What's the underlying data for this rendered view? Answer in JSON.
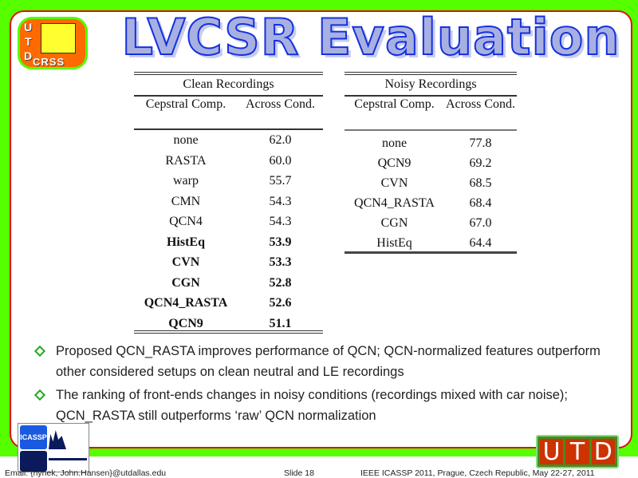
{
  "header": {
    "title": "LVCSR Evaluation",
    "logo_letters": [
      "U",
      "T",
      "D"
    ],
    "logo_text": "CRSS"
  },
  "clean_table": {
    "caption": "Clean Recordings",
    "col1": "Cepstral Comp.",
    "col2": "Across Cond.",
    "rows": [
      {
        "name": "none",
        "value": "62.0",
        "bold": false
      },
      {
        "name": "RASTA",
        "value": "60.0",
        "bold": false
      },
      {
        "name": "warp",
        "value": "55.7",
        "bold": false
      },
      {
        "name": "CMN",
        "value": "54.3",
        "bold": false
      },
      {
        "name": "QCN4",
        "value": "54.3",
        "bold": false
      },
      {
        "name": "HistEq",
        "value": "53.9",
        "bold": true
      },
      {
        "name": "CVN",
        "value": "53.3",
        "bold": true
      },
      {
        "name": "CGN",
        "value": "52.8",
        "bold": true
      },
      {
        "name": "QCN4_RASTA",
        "value": "52.6",
        "bold": true
      },
      {
        "name": "QCN9",
        "value": "51.1",
        "bold": true
      }
    ]
  },
  "noisy_table": {
    "caption": "Noisy Recordings",
    "col1": "Cepstral Comp.",
    "col2": "Across Cond.",
    "rows": [
      {
        "name": "none",
        "value": "77.8"
      },
      {
        "name": "QCN9",
        "value": "69.2"
      },
      {
        "name": "CVN",
        "value": "68.5"
      },
      {
        "name": "QCN4_RASTA",
        "value": "68.4"
      },
      {
        "name": "CGN",
        "value": "67.0"
      },
      {
        "name": "HistEq",
        "value": "64.4"
      }
    ]
  },
  "bullets": [
    "Proposed QCN_RASTA improves performance of QCN; QCN-normalized features outperform other considered setups on clean neutral and LE recordings",
    "The ranking of front-ends changes in noisy conditions (recordings mixed with car noise); QCN_RASTA still outperforms ‘raw’ QCN normalization"
  ],
  "footer": {
    "email": "Email: {hynek, John.Hansen}@utdallas.edu",
    "slide": "Slide  18",
    "conference": "IEEE ICASSP 2011, Prague, Czech Republic, May 22-27, 2011",
    "icassp_logo": "ICASSP",
    "utd_logo": [
      "U",
      "T",
      "D"
    ]
  },
  "colors": {
    "background": "#55ff00",
    "border": "#e01010",
    "title_fill": "#a8b0e2",
    "title_stroke": "#1530e0",
    "bullet": "#22aa22"
  }
}
